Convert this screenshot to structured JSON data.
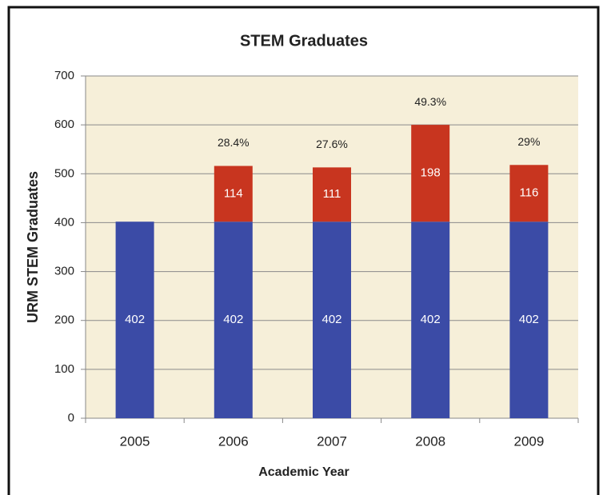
{
  "chart_data": {
    "type": "stacked_bar",
    "title": "STEM Graduates",
    "x_label": "Academic Year",
    "y_label": "URM STEM Graduates",
    "categories": [
      "2005",
      "2006",
      "2007",
      "2008",
      "2009"
    ],
    "series": [
      {
        "color": "#3b4ba6",
        "values": [
          402,
          402,
          402,
          402,
          402
        ]
      },
      {
        "color": "#c8351f",
        "values": [
          null,
          114,
          111,
          198,
          116
        ]
      }
    ],
    "annotations": [
      null,
      "28.4%",
      "27.6%",
      "49.3%",
      "29%"
    ],
    "ylim": [
      0,
      700
    ],
    "yticks": [
      0,
      100,
      200,
      300,
      400,
      500,
      600,
      700
    ],
    "grid": true
  }
}
